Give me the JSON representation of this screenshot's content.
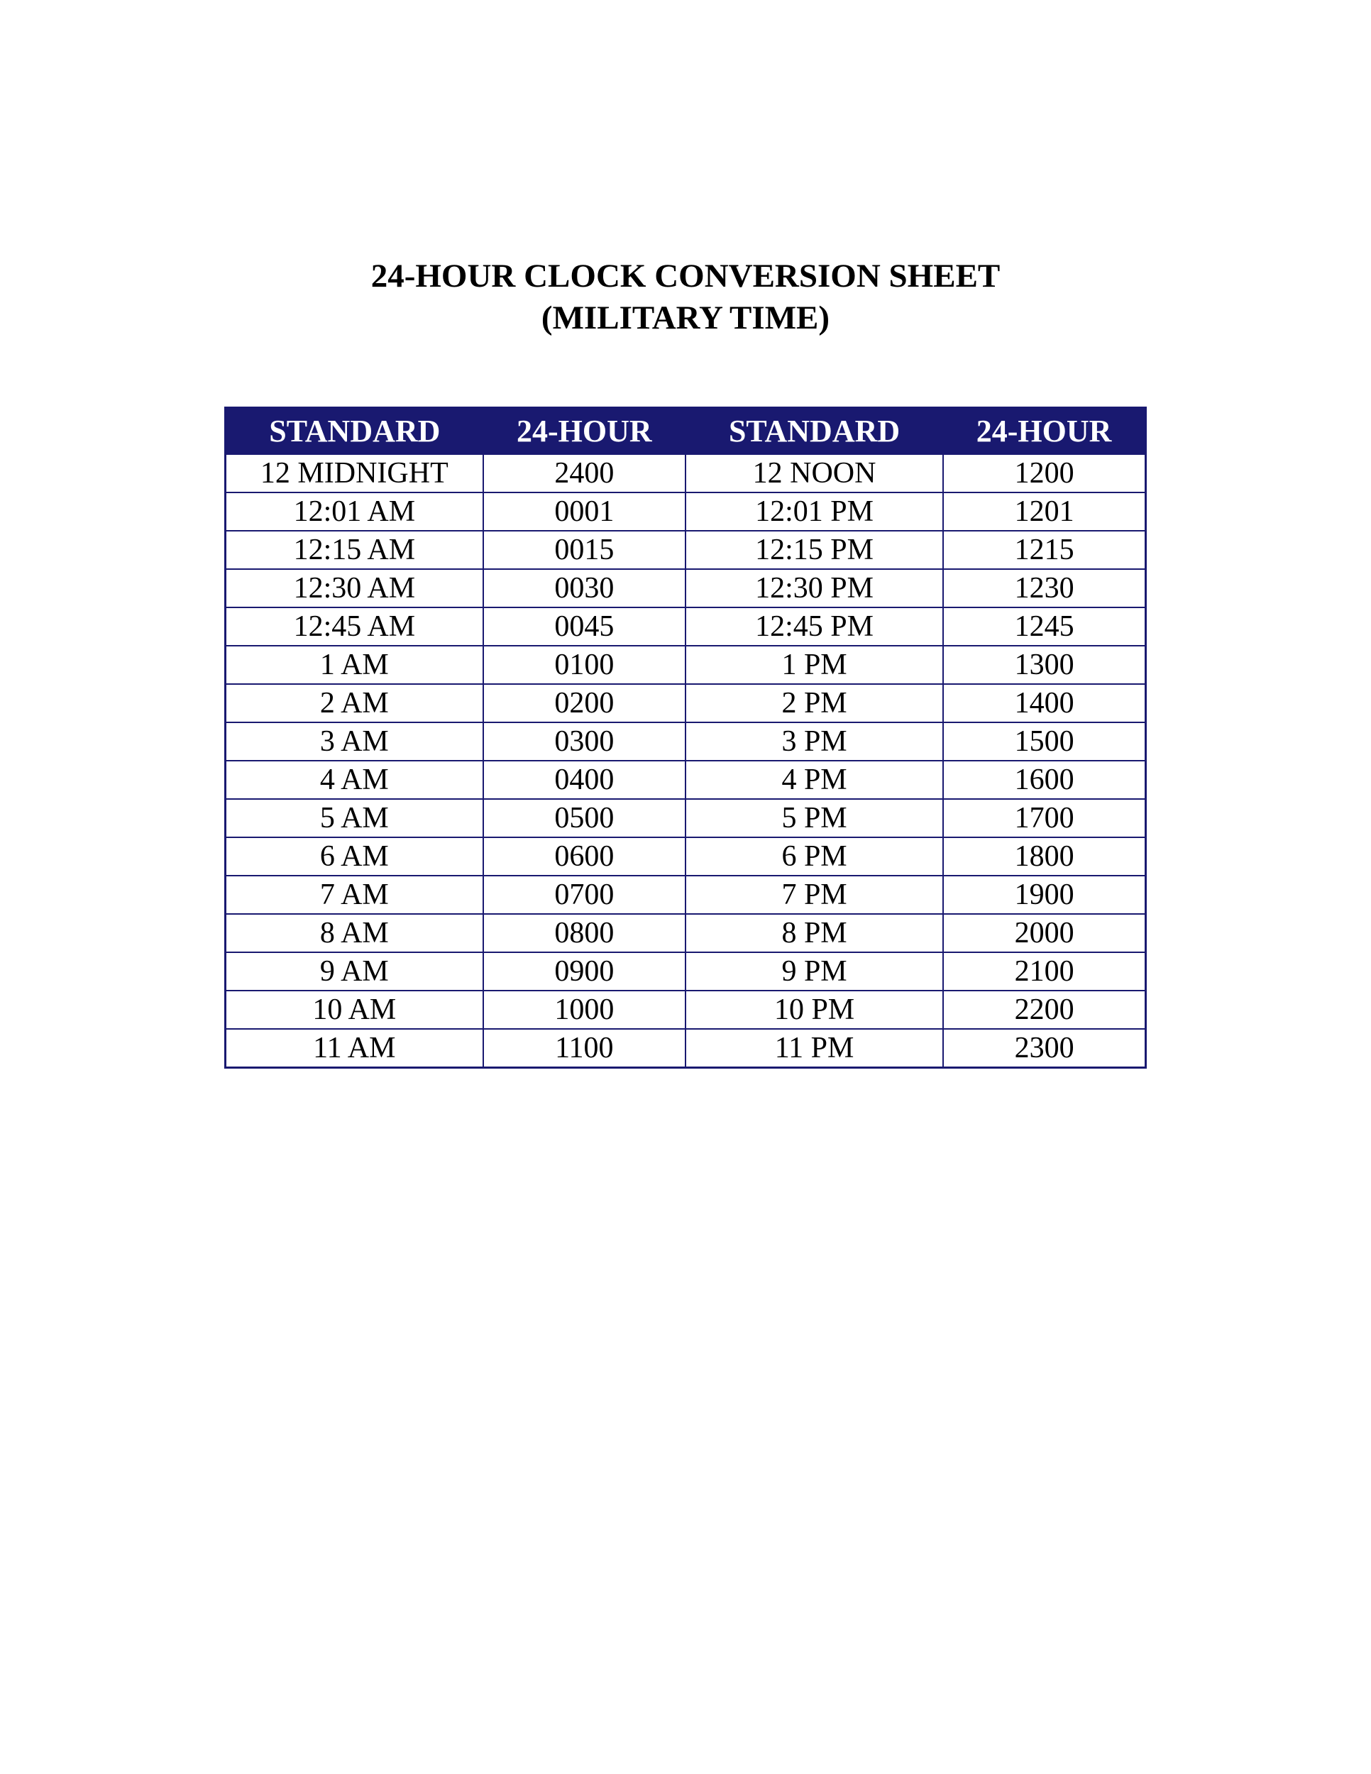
{
  "title": {
    "line1": "24-HOUR CLOCK CONVERSION SHEET",
    "line2": "(MILITARY TIME)"
  },
  "table": {
    "type": "table",
    "header_bg_color": "#191970",
    "header_text_color": "#ffffff",
    "border_color": "#191970",
    "cell_text_color": "#000000",
    "background_color": "#ffffff",
    "header_fontsize": 44,
    "cell_fontsize": 42,
    "columns": [
      "STANDARD",
      "24-HOUR",
      "STANDARD",
      "24-HOUR"
    ],
    "rows": [
      [
        "12 MIDNIGHT",
        "2400",
        "12 NOON",
        "1200"
      ],
      [
        "12:01 AM",
        "0001",
        "12:01 PM",
        "1201"
      ],
      [
        "12:15 AM",
        "0015",
        "12:15 PM",
        "1215"
      ],
      [
        "12:30 AM",
        "0030",
        "12:30 PM",
        "1230"
      ],
      [
        "12:45 AM",
        "0045",
        "12:45 PM",
        "1245"
      ],
      [
        "1 AM",
        "0100",
        "1 PM",
        "1300"
      ],
      [
        "2 AM",
        "0200",
        "2 PM",
        "1400"
      ],
      [
        "3 AM",
        "0300",
        "3 PM",
        "1500"
      ],
      [
        "4 AM",
        "0400",
        "4 PM",
        "1600"
      ],
      [
        "5 AM",
        "0500",
        "5 PM",
        "1700"
      ],
      [
        "6 AM",
        "0600",
        "6 PM",
        "1800"
      ],
      [
        "7 AM",
        "0700",
        "7 PM",
        "1900"
      ],
      [
        "8 AM",
        "0800",
        "8 PM",
        "2000"
      ],
      [
        "9 AM",
        "0900",
        "9 PM",
        "2100"
      ],
      [
        "10 AM",
        "1000",
        "10 PM",
        "2200"
      ],
      [
        "11 AM",
        "1100",
        "11 PM",
        "2300"
      ]
    ]
  }
}
